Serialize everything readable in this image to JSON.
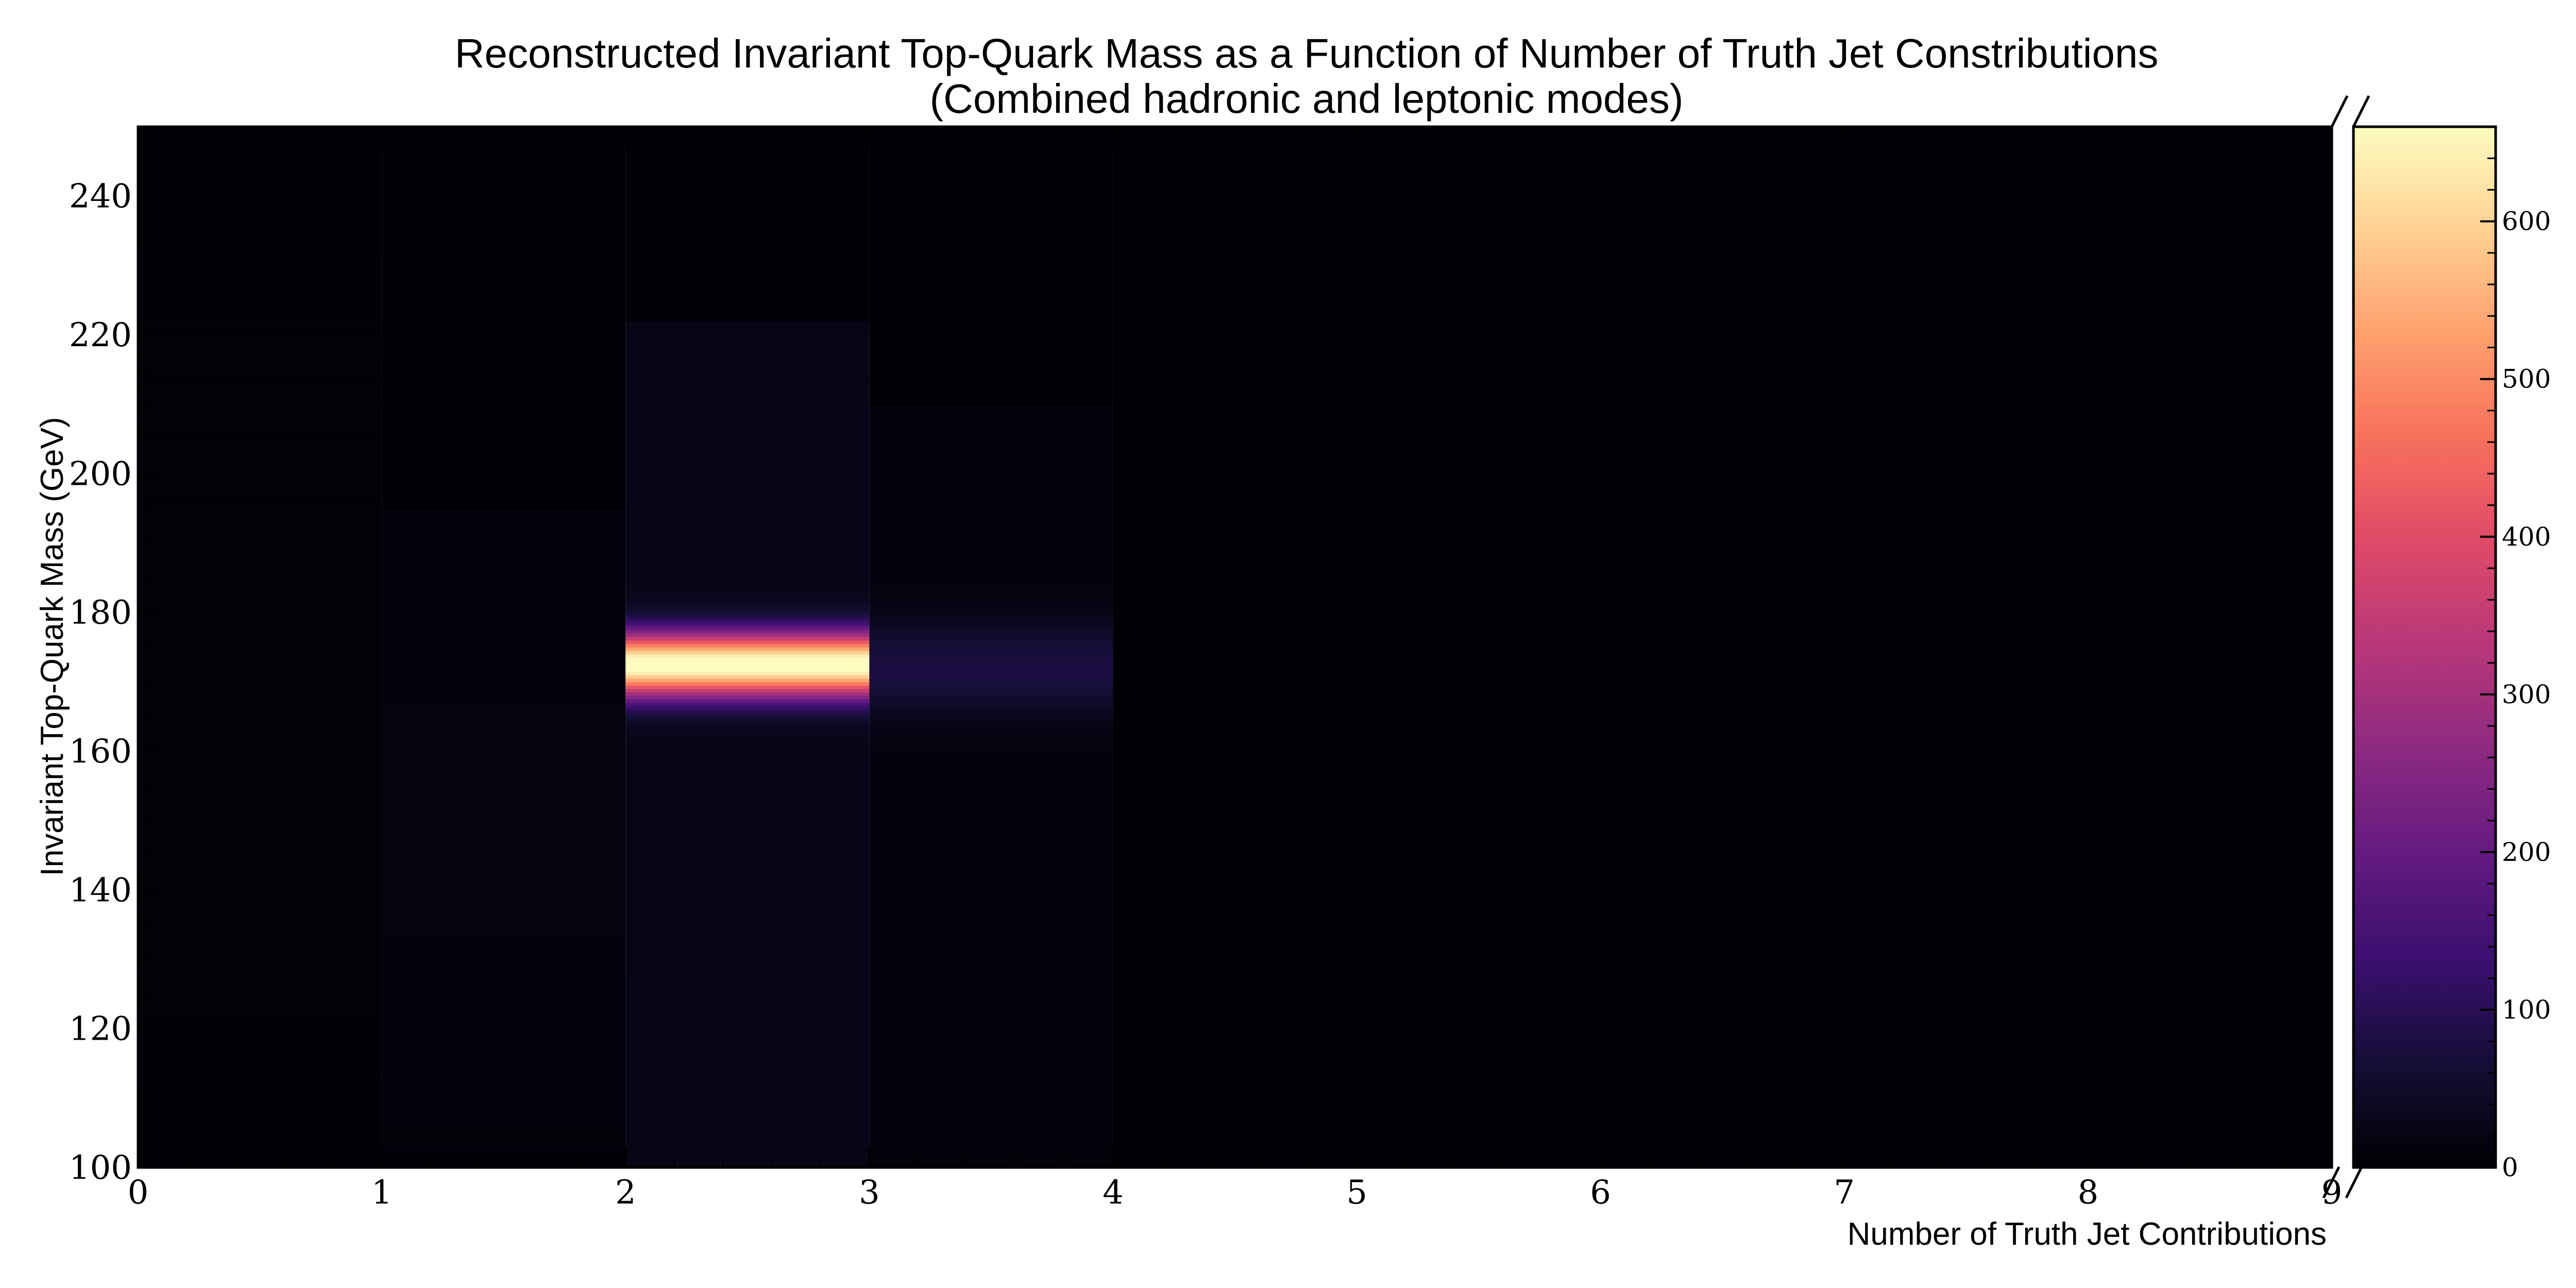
{
  "chart_data": {
    "type": "heatmap",
    "title": "Reconstructed Invariant Top-Quark Mass as a Function of Number of Truth Jet Constributions",
    "subtitle": "(Combined hadronic and leptonic modes)",
    "xlabel": "Number of Truth Jet Contributions",
    "ylabel": "Invariant Top-Quark Mass (GeV)",
    "xlim": [
      0,
      9
    ],
    "ylim": [
      100,
      250
    ],
    "x_ticks": [
      "0",
      "1",
      "2",
      "3",
      "4",
      "5",
      "6",
      "7",
      "8",
      "9"
    ],
    "y_ticks": [
      "100",
      "120",
      "140",
      "160",
      "180",
      "200",
      "220",
      "240"
    ],
    "colormap": "magma",
    "colorbar": {
      "range": [
        0,
        660
      ],
      "ticks": [
        "0",
        "100",
        "200",
        "300",
        "400",
        "500",
        "600"
      ]
    },
    "columns": [
      {
        "x_range": [
          0,
          1
        ],
        "peak_mass": 172,
        "peak_count": 3,
        "width_gev": 40,
        "floor_count": 1,
        "mass_range": [
          100,
          250
        ]
      },
      {
        "x_range": [
          1,
          2
        ],
        "peak_mass": 150,
        "peak_count": 10,
        "width_gev": 30,
        "floor_count": 4,
        "mass_range": [
          102,
          195
        ]
      },
      {
        "x_range": [
          2,
          3
        ],
        "peak_mass": 172.5,
        "peak_count": 660,
        "width_gev": 3.2,
        "floor_count": 25,
        "mass_range": [
          100,
          222
        ]
      },
      {
        "x_range": [
          3,
          4
        ],
        "peak_mass": 172,
        "peak_count": 70,
        "width_gev": 5,
        "floor_count": 8,
        "mass_range": [
          100,
          210
        ]
      },
      {
        "x_range": [
          4,
          9
        ],
        "peak_mass": 172,
        "peak_count": 0,
        "width_gev": 10,
        "floor_count": 0,
        "mass_range": [
          100,
          250
        ]
      }
    ]
  }
}
